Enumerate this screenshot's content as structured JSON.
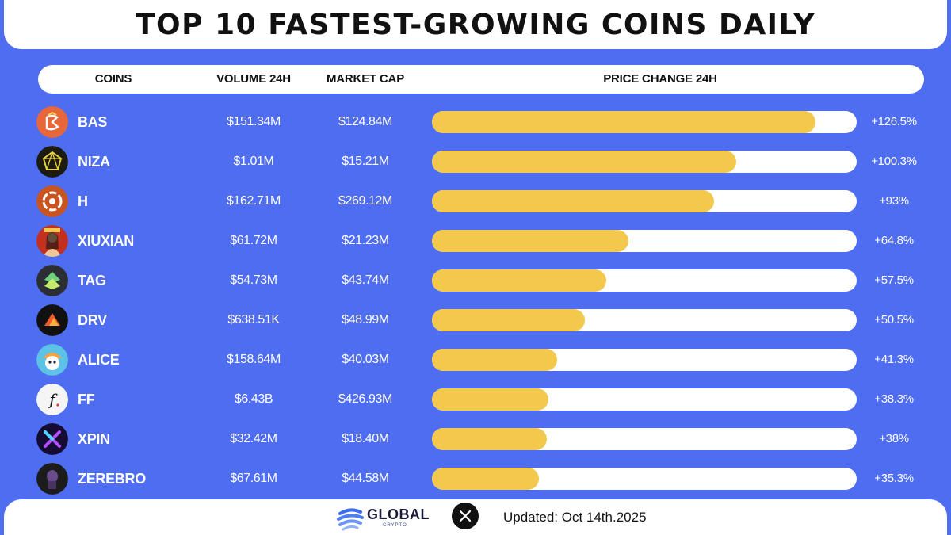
{
  "title": "TOP 10 FASTEST-GROWING COINS DAILY",
  "headers": {
    "coins": "COINS",
    "volume": "VOLUME 24H",
    "market_cap": "MARKET CAP",
    "price_change": "PRICE CHANGE 24H"
  },
  "colors": {
    "background": "#4f6df0",
    "bar_fill": "#f2c94c",
    "bar_track": "#ffffff",
    "text_light": "#ffffff"
  },
  "chart_data": {
    "type": "bar",
    "orientation": "horizontal",
    "title": "TOP 10 FASTEST-GROWING COINS DAILY",
    "categories": [
      "BAS",
      "NIZA",
      "H",
      "XIUXIAN",
      "TAG",
      "DRV",
      "ALICE",
      "FF",
      "XPIN",
      "ZEREBRO"
    ],
    "series": [
      {
        "values": [
          126.5,
          100.3,
          93,
          64.8,
          57.5,
          50.5,
          41.3,
          38.3,
          38,
          35.3
        ]
      }
    ],
    "rows": [
      {
        "coin": "BAS",
        "icon": "bas-coin-icon",
        "volume": "$151.34M",
        "market_cap": "$124.84M",
        "change": 126.5,
        "change_label": "+126.5%"
      },
      {
        "coin": "NIZA",
        "icon": "niza-coin-icon",
        "volume": "$1.01M",
        "market_cap": "$15.21M",
        "change": 100.3,
        "change_label": "+100.3%"
      },
      {
        "coin": "H",
        "icon": "h-coin-icon",
        "volume": "$162.71M",
        "market_cap": "$269.12M",
        "change": 93,
        "change_label": "+93%"
      },
      {
        "coin": "XIUXIAN",
        "icon": "xiuxian-coin-icon",
        "volume": "$61.72M",
        "market_cap": "$21.23M",
        "change": 64.8,
        "change_label": "+64.8%"
      },
      {
        "coin": "TAG",
        "icon": "tag-coin-icon",
        "volume": "$54.73M",
        "market_cap": "$43.74M",
        "change": 57.5,
        "change_label": "+57.5%"
      },
      {
        "coin": "DRV",
        "icon": "drv-coin-icon",
        "volume": "$638.51K",
        "market_cap": "$48.99M",
        "change": 50.5,
        "change_label": "+50.5%"
      },
      {
        "coin": "ALICE",
        "icon": "alice-coin-icon",
        "volume": "$158.64M",
        "market_cap": "$40.03M",
        "change": 41.3,
        "change_label": "+41.3%"
      },
      {
        "coin": "FF",
        "icon": "ff-coin-icon",
        "volume": "$6.43B",
        "market_cap": "$426.93M",
        "change": 38.3,
        "change_label": "+38.3%"
      },
      {
        "coin": "XPIN",
        "icon": "xpin-coin-icon",
        "volume": "$32.42M",
        "market_cap": "$18.40M",
        "change": 38,
        "change_label": "+38%"
      },
      {
        "coin": "ZEREBRO",
        "icon": "zerebro-coin-icon",
        "volume": "$67.61M",
        "market_cap": "$44.58M",
        "change": 35.3,
        "change_label": "+35.3%"
      }
    ],
    "xlim": [
      0,
      140
    ]
  },
  "footer": {
    "brand": "GLOBAL",
    "brand_sub": "CRYPTO",
    "brand_icon": "global-crypto-logo-icon",
    "social_icon": "x-icon",
    "updated": "Updated: Oct 14th.2025"
  }
}
